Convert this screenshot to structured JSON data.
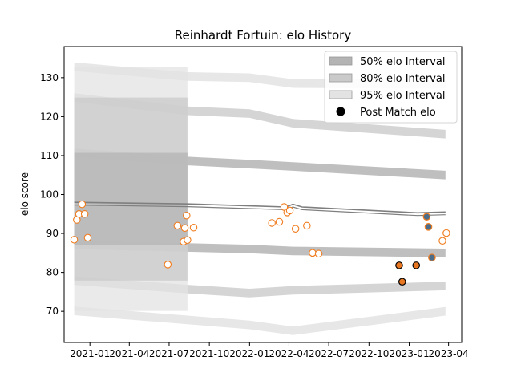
{
  "chart_data": {
    "type": "scatter",
    "title": "Reinhardt Fortuin: elo History",
    "xlabel": "",
    "ylabel": "elo score",
    "ylim": [
      62,
      138
    ],
    "xlim": [
      "2020-11-03",
      "2023-05-01"
    ],
    "x_ticks": [
      "2021-01",
      "2021-04",
      "2021-07",
      "2021-10",
      "2022-01",
      "2022-04",
      "2022-07",
      "2022-10",
      "2023-01",
      "2023-04"
    ],
    "y_ticks": [
      70,
      80,
      90,
      100,
      110,
      120,
      130
    ],
    "grid": false,
    "legend_position": "top-right",
    "colors": {
      "band_50": "#b4b4b4",
      "band_80": "#cacaca",
      "band_95": "#e3e3e3",
      "mean_line": "#7f7f7f",
      "hollow_marker": "#f07c1e",
      "filled_marker": "#e87722",
      "blue_marker": "#4c6d8a",
      "legend_dot": "#000000"
    },
    "series": [
      {
        "name": "50% elo Interval",
        "kind": "band",
        "lines": [
          {
            "x": [
              "2020-11-26",
              "2021-08-12",
              "2022-01-01",
              "2022-04-10",
              "2023-03-25"
            ],
            "y": [
              110.7,
              108.6,
              107.8,
              107.2,
              105.0
            ]
          },
          {
            "x": [
              "2020-11-26",
              "2021-08-12",
              "2022-01-01",
              "2022-04-10",
              "2023-03-25"
            ],
            "y": [
              87.1,
              86.4,
              86.0,
              85.5,
              85.0
            ]
          }
        ]
      },
      {
        "name": "80% elo Interval",
        "kind": "band",
        "lines": [
          {
            "x": [
              "2020-11-26",
              "2021-08-12",
              "2022-01-01",
              "2022-04-10",
              "2023-03-25"
            ],
            "y": [
              124.9,
              121.5,
              120.8,
              118.3,
              115.5
            ]
          },
          {
            "x": [
              "2020-11-26",
              "2021-08-12",
              "2022-01-01",
              "2022-04-10",
              "2023-03-25"
            ],
            "y": [
              77.9,
              75.7,
              74.7,
              75.4,
              76.5
            ]
          }
        ]
      },
      {
        "name": "95% elo Interval",
        "kind": "band",
        "lines": [
          {
            "x": [
              "2020-11-26",
              "2021-08-12",
              "2022-01-01",
              "2022-04-10",
              "2023-03-25"
            ],
            "y": [
              132.8,
              130.3,
              130.0,
              128.5,
              128.3
            ]
          },
          {
            "x": [
              "2020-11-26",
              "2021-08-12",
              "2022-01-01",
              "2022-04-10",
              "2023-03-25"
            ],
            "y": [
              70.1,
              67.8,
              66.5,
              65.0,
              70.0
            ]
          }
        ]
      },
      {
        "name": "",
        "kind": "line",
        "x": [
          "2020-11-26",
          "2021-08-12",
          "2022-01-01",
          "2022-03-25",
          "2022-04-10",
          "2022-05-01",
          "2023-01-20",
          "2023-03-25"
        ],
        "y": [
          98.0,
          97.6,
          97.1,
          96.8,
          97.5,
          96.8,
          95.3,
          95.5
        ]
      },
      {
        "name": "",
        "kind": "hollow_points",
        "x": [
          "2020-11-26",
          "2020-12-02",
          "2020-12-07",
          "2020-12-14",
          "2020-12-20",
          "2020-12-27",
          "2021-06-28",
          "2021-07-20",
          "2021-08-03",
          "2021-08-06",
          "2021-08-10",
          "2021-08-12",
          "2021-08-26",
          "2022-02-21",
          "2022-03-10",
          "2022-03-21",
          "2022-03-28",
          "2022-04-03",
          "2022-04-16",
          "2022-05-12",
          "2022-05-25",
          "2022-06-08",
          "2023-03-18",
          "2023-03-27"
        ],
        "y": [
          88.4,
          93.5,
          95.0,
          97.5,
          95.0,
          88.9,
          82.0,
          92.0,
          87.9,
          91.4,
          94.6,
          88.3,
          91.5,
          92.7,
          93.0,
          96.8,
          95.4,
          95.9,
          91.2,
          92.0,
          85.0,
          84.8,
          88.1,
          90.1
        ]
      },
      {
        "name": "",
        "kind": "filled_points",
        "x": [
          "2022-12-09",
          "2022-12-16",
          "2023-01-17"
        ],
        "y": [
          81.8,
          77.6,
          81.8
        ]
      },
      {
        "name": "",
        "kind": "blue_points",
        "x": [
          "2023-02-10",
          "2023-02-14",
          "2023-02-22"
        ],
        "y": [
          94.3,
          91.7,
          83.8
        ]
      },
      {
        "name": "Post Match elo",
        "kind": "legend_only"
      }
    ]
  }
}
